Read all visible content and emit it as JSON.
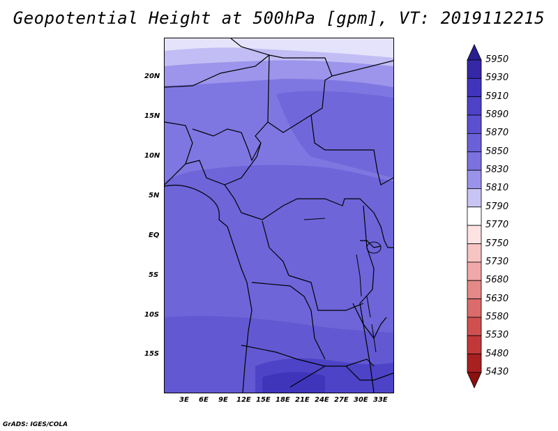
{
  "title": "Geopotential Height at 500hPa [gpm], VT: 2019112215",
  "credit": "GrADS: IGES/COLA",
  "lat_labels": [
    "20N",
    "15N",
    "10N",
    "5N",
    "EQ",
    "5S",
    "10S",
    "15S"
  ],
  "lon_labels": [
    "3E",
    "6E",
    "9E",
    "12E",
    "15E",
    "18E",
    "21E",
    "24E",
    "27E",
    "30E",
    "33E"
  ],
  "colorbar": {
    "levels": [
      "5950",
      "5930",
      "5910",
      "5890",
      "5870",
      "5850",
      "5830",
      "5810",
      "5790",
      "5770",
      "5750",
      "5730",
      "5680",
      "5630",
      "5580",
      "5530",
      "5480",
      "5430"
    ],
    "colors": [
      "#2a1f8e",
      "#3527a6",
      "#4034bd",
      "#4d42c8",
      "#5b50d0",
      "#6a60d8",
      "#7b72e0",
      "#9a93ea",
      "#c8c4f4",
      "#ffffff",
      "#fde2e2",
      "#f7c4c4",
      "#f0a8a8",
      "#e48888",
      "#da6c6c",
      "#d05050",
      "#c23838",
      "#a82020",
      "#8c1010"
    ]
  },
  "regions": {
    "northern_band": "light lavender",
    "central": "medium blue-violet",
    "southern_low": "dark indigo"
  }
}
